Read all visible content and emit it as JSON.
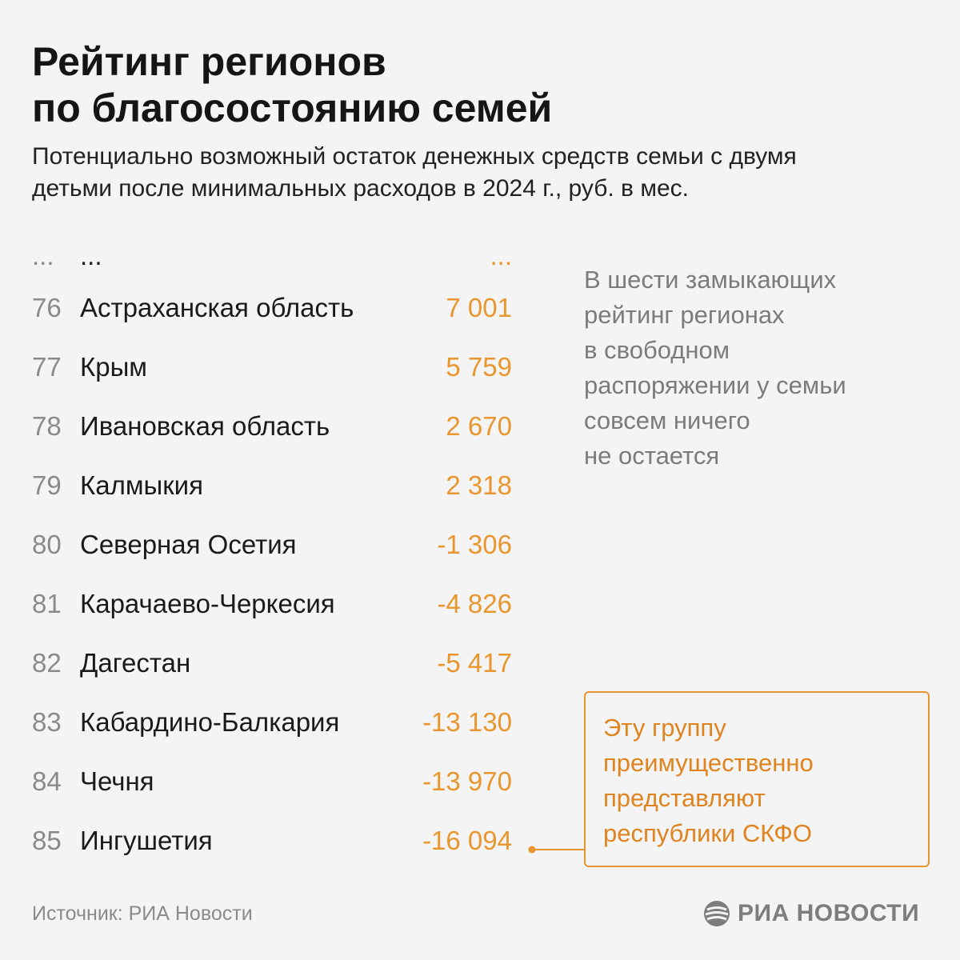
{
  "chart_data": {
    "type": "table",
    "title_lines": [
      "Рейтинг регионов",
      "по благосостоянию семей"
    ],
    "subtitle_lines": [
      "Потенциально возможный остаток денежных средств семьи с двумя",
      "детьми после минимальных расходов в 2024 г., руб. в мес."
    ],
    "ellipsis_row": {
      "rank": "...",
      "name": "...",
      "value": "..."
    },
    "rows": [
      {
        "rank": "76",
        "name": "Астраханская область",
        "value": "7 001"
      },
      {
        "rank": "77",
        "name": "Крым",
        "value": "5 759"
      },
      {
        "rank": "78",
        "name": "Ивановская область",
        "value": "2 670"
      },
      {
        "rank": "79",
        "name": "Калмыкия",
        "value": "2 318"
      },
      {
        "rank": "80",
        "name": "Северная Осетия",
        "value": "-1 306"
      },
      {
        "rank": "81",
        "name": "Карачаево-Черкесия",
        "value": "-4 826"
      },
      {
        "rank": "82",
        "name": "Дагестан",
        "value": "-5 417"
      },
      {
        "rank": "83",
        "name": "Кабардино-Балкария",
        "value": "-13 130"
      },
      {
        "rank": "84",
        "name": "Чечня",
        "value": "-13 970"
      },
      {
        "rank": "85",
        "name": "Ингушетия",
        "value": "-16 094"
      }
    ],
    "value_color": "#e8962d"
  },
  "note_lines": [
    "В шести замыкающих",
    "рейтинг регионах",
    "в свободном",
    "распоряжении у семьи",
    "совсем ничего",
    "не остается"
  ],
  "callout_lines": [
    "Эту группу",
    "преимущественно",
    "представляют",
    "республики СКФО"
  ],
  "source": "Источник: РИА Новости",
  "logo": {
    "text": "РИА НОВОСТИ",
    "icon": "ria-logo-icon"
  },
  "colors": {
    "accent": "#e8962d",
    "muted": "#8a8a8a",
    "text": "#1a1a1a"
  }
}
